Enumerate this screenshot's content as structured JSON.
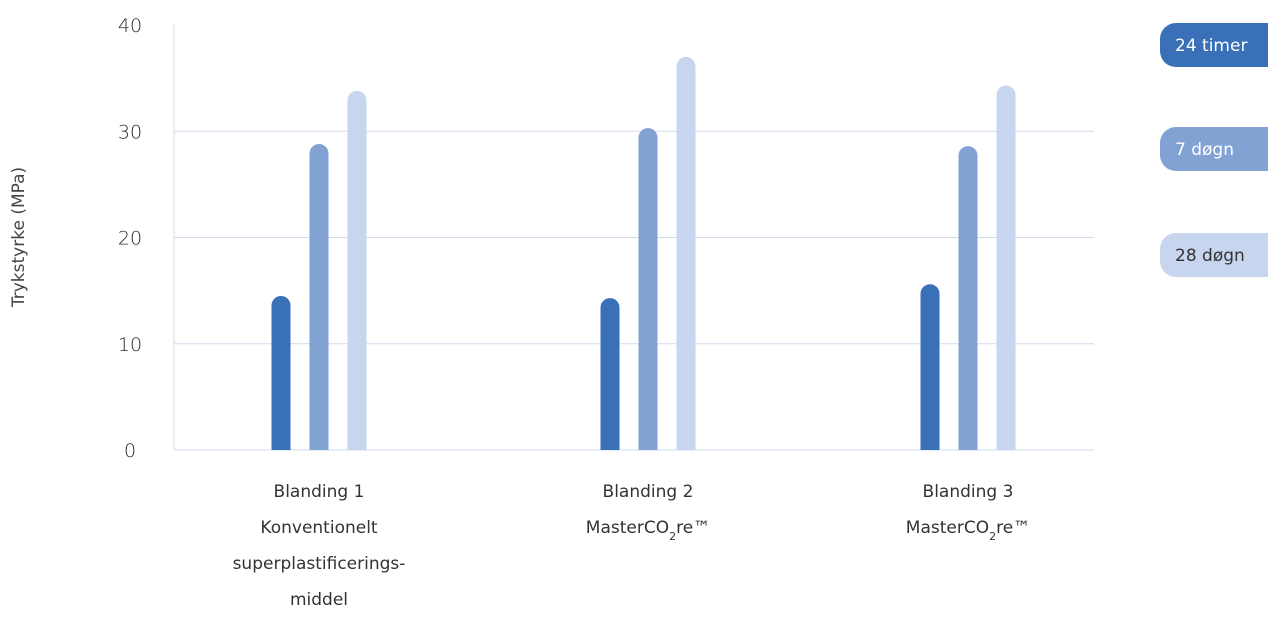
{
  "chart_data": {
    "type": "bar",
    "ylabel": "Trykstyrke  (MPa)",
    "ylim": [
      0,
      40
    ],
    "yticks": [
      "0",
      "10",
      "20",
      "30",
      "40"
    ],
    "grid": true,
    "legend_position": "right",
    "categories": [
      {
        "lines": [
          "Blanding 1",
          "Konventionelt",
          "superplastificerings-",
          "middel"
        ]
      },
      {
        "lines": [
          "Blanding 2",
          "MasterCO2re™"
        ]
      },
      {
        "lines": [
          "Blanding 3",
          "MasterCO2re™"
        ]
      }
    ],
    "series": [
      {
        "name": "24 timer",
        "color": "#3a70b8",
        "text_color": "#ffffff",
        "values": [
          14.5,
          14.3,
          15.6
        ]
      },
      {
        "name": "7 døgn",
        "color": "#82a2d4",
        "text_color": "#ffffff",
        "values": [
          28.8,
          30.3,
          28.6
        ]
      },
      {
        "name": "28 døgn",
        "color": "#c7d6ee",
        "text_color": "#333333",
        "values": [
          33.8,
          37.0,
          34.3
        ]
      }
    ]
  }
}
